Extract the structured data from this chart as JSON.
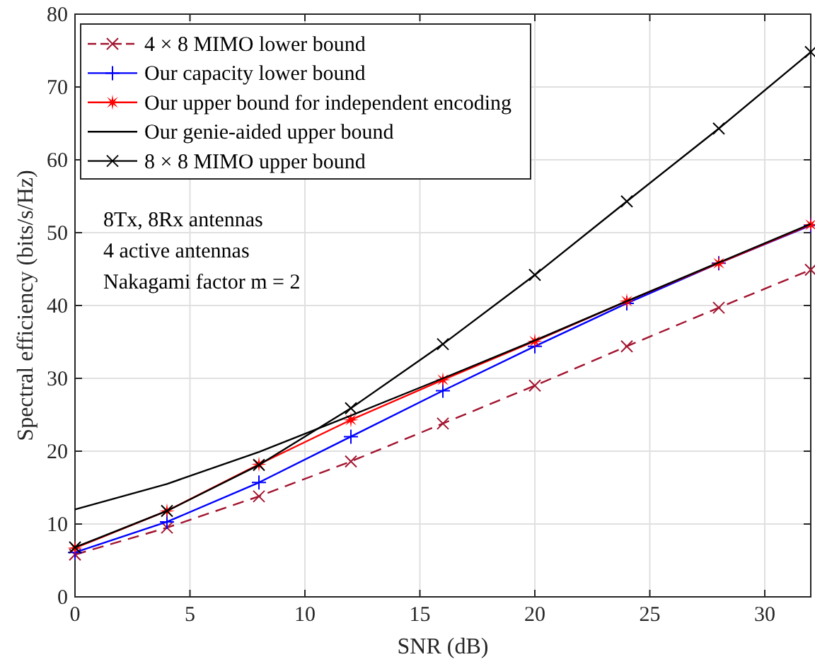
{
  "chart_data": {
    "type": "line",
    "xlabel": "SNR (dB)",
    "ylabel": "Spectral efficiency (bits/s/Hz)",
    "xlim": [
      0,
      32
    ],
    "ylim": [
      0,
      80
    ],
    "xticks": [
      0,
      5,
      10,
      15,
      20,
      25,
      30
    ],
    "yticks": [
      0,
      10,
      20,
      30,
      40,
      50,
      60,
      70,
      80
    ],
    "grid": true,
    "legend": "top left",
    "x": [
      0,
      4,
      8,
      12,
      16,
      20,
      24,
      28,
      32
    ],
    "series": [
      {
        "name": "4 × 8 MIMO lower bound",
        "color": "#a2142f",
        "marker": "cross",
        "line_style": "dashed",
        "values": [
          5.8,
          9.5,
          13.8,
          18.6,
          23.8,
          29.0,
          34.4,
          39.7,
          44.9
        ]
      },
      {
        "name": "Our capacity lower bound",
        "color": "#0000ff",
        "marker": "plus",
        "line_style": "solid",
        "values": [
          6.1,
          10.3,
          15.7,
          22.0,
          28.3,
          34.4,
          40.3,
          45.8,
          51.0
        ]
      },
      {
        "name": "Our upper bound for independent encoding",
        "color": "#ff0000",
        "marker": "star",
        "line_style": "solid",
        "values": [
          6.7,
          11.8,
          18.2,
          24.3,
          29.8,
          35.1,
          40.6,
          45.8,
          51.1
        ]
      },
      {
        "name": "Our genie-aided upper bound",
        "color": "#000000",
        "marker": "none",
        "line_style": "solid",
        "values": [
          12.0,
          15.5,
          19.9,
          24.9,
          30.0,
          35.2,
          40.6,
          45.9,
          51.2
        ]
      },
      {
        "name": "8 × 8 MIMO upper bound",
        "color": "#000000",
        "marker": "cross",
        "line_style": "solid",
        "values": [
          6.8,
          11.8,
          18.1,
          25.9,
          34.7,
          44.2,
          54.3,
          64.3,
          74.8
        ]
      }
    ],
    "annotations": [
      "8Tx, 8Rx antennas",
      "4 active antennas",
      "Nakagami factor m = 2"
    ]
  }
}
